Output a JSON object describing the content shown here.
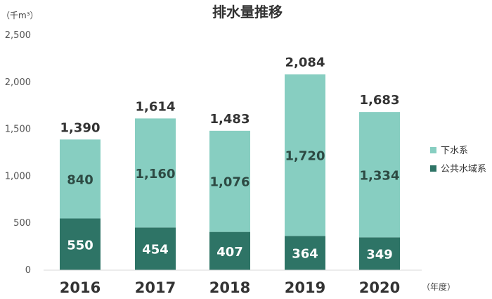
{
  "chart_data": {
    "type": "bar",
    "stacked": true,
    "title": "排水量推移",
    "unit_label": "（千m³）",
    "x_unit_label": "（年度）",
    "categories": [
      "2016",
      "2017",
      "2018",
      "2019",
      "2020"
    ],
    "series": [
      {
        "name": "公共水域系",
        "values": [
          550,
          454,
          407,
          364,
          349
        ],
        "color": "#2e7466",
        "label_color": "#ffffff"
      },
      {
        "name": "下水系",
        "values": [
          840,
          1160,
          1076,
          1720,
          1334
        ],
        "color": "#87cec1",
        "label_color": "#2d4a43"
      }
    ],
    "totals": [
      1390,
      1614,
      1483,
      2084,
      1683
    ],
    "ylim": [
      0,
      2500
    ],
    "yticks": [
      0,
      500,
      1000,
      1500,
      2000,
      2500
    ],
    "grid": false,
    "legend_position": "right"
  }
}
